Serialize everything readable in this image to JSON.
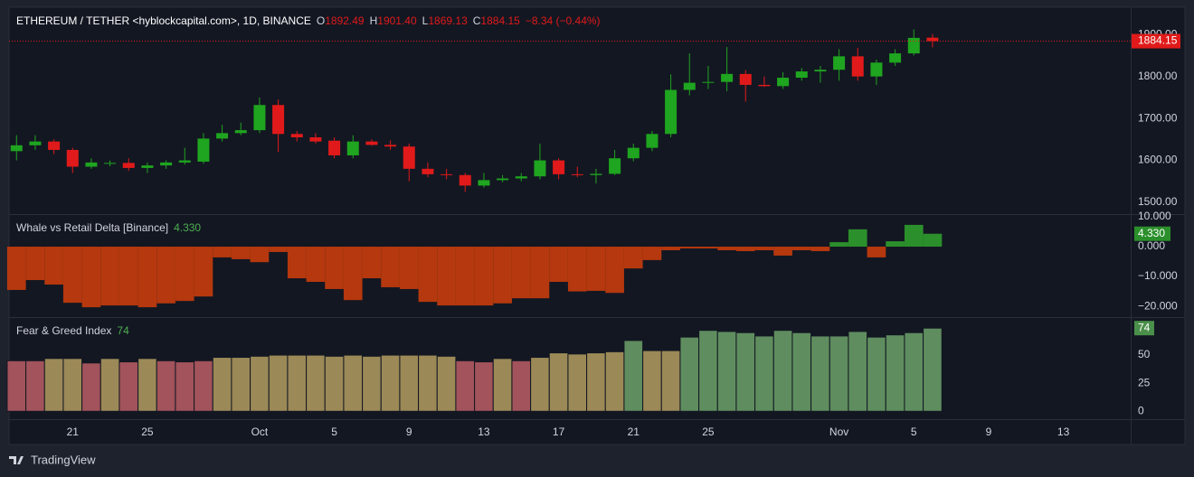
{
  "chart_data": [
    {
      "type": "candlestick",
      "title": "ETHEREUM / TETHER <hyblockcapital.com>, 1D, BINANCE",
      "legend": [
        {
          "label": "O",
          "value": "1892.49"
        },
        {
          "label": "H",
          "value": "1901.40"
        },
        {
          "label": "L",
          "value": "1869.13"
        },
        {
          "label": "C",
          "value": "1884.15"
        }
      ],
      "change": "−8.34 (−0.44%)",
      "open": [
        1622,
        1636,
        1645,
        1625,
        1585,
        1592,
        1594,
        1582,
        1588,
        1595,
        1597,
        1652,
        1665,
        1672,
        1732,
        1663,
        1655,
        1647,
        1612,
        1645,
        1637,
        1633,
        1580,
        1567,
        1565,
        1540,
        1553,
        1557,
        1562,
        1600,
        1567,
        1565,
        1568,
        1605,
        1630,
        1663,
        1768,
        1785,
        1787,
        1806,
        1780,
        1777,
        1797,
        1812,
        1816,
        1848,
        1800,
        1833,
        1855,
        1892.49
      ],
      "high": [
        1660,
        1660,
        1650,
        1630,
        1605,
        1600,
        1605,
        1595,
        1600,
        1630,
        1665,
        1685,
        1690,
        1750,
        1745,
        1670,
        1665,
        1655,
        1660,
        1650,
        1648,
        1640,
        1595,
        1580,
        1570,
        1570,
        1565,
        1570,
        1640,
        1605,
        1585,
        1580,
        1625,
        1640,
        1670,
        1805,
        1855,
        1825,
        1870,
        1815,
        1800,
        1810,
        1820,
        1825,
        1865,
        1868,
        1840,
        1865,
        1912,
        1901.4
      ],
      "low": [
        1600,
        1625,
        1615,
        1570,
        1580,
        1586,
        1575,
        1570,
        1580,
        1590,
        1592,
        1645,
        1660,
        1665,
        1620,
        1645,
        1640,
        1605,
        1605,
        1635,
        1625,
        1550,
        1560,
        1555,
        1525,
        1535,
        1548,
        1550,
        1555,
        1555,
        1560,
        1545,
        1565,
        1598,
        1622,
        1655,
        1755,
        1770,
        1765,
        1740,
        1775,
        1770,
        1790,
        1785,
        1790,
        1790,
        1780,
        1825,
        1850,
        1869.13
      ],
      "close": [
        1636,
        1645,
        1625,
        1585,
        1595,
        1594,
        1582,
        1588,
        1595,
        1600,
        1652,
        1665,
        1672,
        1732,
        1663,
        1655,
        1645,
        1612,
        1645,
        1637,
        1633,
        1580,
        1567,
        1565,
        1540,
        1553,
        1557,
        1562,
        1600,
        1567,
        1565,
        1568,
        1605,
        1630,
        1663,
        1768,
        1785,
        1787,
        1806,
        1780,
        1777,
        1797,
        1812,
        1816,
        1848,
        1800,
        1833,
        1855,
        1892,
        1884.15
      ],
      "up_color": "#1fa51f",
      "down_color": "#e01a1a",
      "ylim": [
        1472,
        1965
      ],
      "yticks": [
        {
          "value": 1500,
          "label": "1500.00"
        },
        {
          "value": 1600,
          "label": "1600.00"
        },
        {
          "value": 1700,
          "label": "1700.00"
        },
        {
          "value": 1800,
          "label": "1800.00"
        },
        {
          "value": 1900,
          "label": "1900.00"
        }
      ]
    },
    {
      "type": "bar",
      "title": "Whale vs Retail Delta [Binance]",
      "legend_value": "4.330",
      "values": [
        -14.5,
        -11.2,
        -12.7,
        -18.8,
        -20.3,
        -19.7,
        -19.7,
        -20.3,
        -19,
        -18.2,
        -16.7,
        -3.6,
        -4.2,
        -5.2,
        -1.8,
        -10.6,
        -11.8,
        -14.2,
        -17.9,
        -10.6,
        -13.6,
        -14.2,
        -18.5,
        -19.7,
        -19.7,
        -19.7,
        -19,
        -17.3,
        -17.3,
        -11.8,
        -15,
        -14.8,
        -15.5,
        -7.3,
        -4.5,
        -1.2,
        -0.6,
        -0.6,
        -1.2,
        -1.5,
        -1.2,
        -3,
        -1.2,
        -1.5,
        1.5,
        5.8,
        -3.6,
        1.8,
        7.3,
        4.33
      ],
      "positive_color": "#2b8f2b",
      "negative_color": "#b5380e",
      "ylim": [
        -23.6,
        10.6
      ],
      "yticks": [
        {
          "value": -20,
          "label": "−20.000"
        },
        {
          "value": -10,
          "label": "−10.000"
        },
        {
          "value": 0,
          "label": "0.000"
        },
        {
          "value": 10,
          "label": "10.000"
        }
      ]
    },
    {
      "type": "bar",
      "title": "Fear & Greed Index",
      "values": [
        45,
        45,
        47,
        47,
        43,
        47,
        44,
        47,
        45,
        44,
        45,
        48,
        48,
        49,
        50,
        50,
        50,
        49,
        50,
        49,
        50,
        50,
        50,
        49,
        45,
        44,
        47,
        45,
        48,
        52,
        51,
        52,
        53,
        63,
        54,
        54,
        66,
        72,
        71,
        70,
        67,
        72,
        70,
        67,
        67,
        71,
        66,
        68,
        70,
        74
      ],
      "colors": [
        "#a2535b",
        "#a2535b",
        "#9b8957",
        "#9b8957",
        "#a2535b",
        "#9b8957",
        "#a2535b",
        "#9b8957",
        "#a2535b",
        "#a2535b",
        "#a2535b",
        "#9b8957",
        "#9b8957",
        "#9b8957",
        "#9b8957",
        "#9b8957",
        "#9b8957",
        "#9b8957",
        "#9b8957",
        "#9b8957",
        "#9b8957",
        "#9b8957",
        "#9b8957",
        "#9b8957",
        "#a2535b",
        "#a2535b",
        "#9b8957",
        "#a2535b",
        "#9b8957",
        "#9b8957",
        "#9b8957",
        "#9b8957",
        "#9b8957",
        "#5f8d5f",
        "#9b8957",
        "#9b8957",
        "#5f8d5f",
        "#5f8d5f",
        "#5f8d5f",
        "#5f8d5f",
        "#5f8d5f",
        "#5f8d5f",
        "#5f8d5f",
        "#5f8d5f",
        "#5f8d5f",
        "#5f8d5f",
        "#5f8d5f",
        "#5f8d5f",
        "#5f8d5f",
        "#5f8d5f"
      ],
      "ylim": [
        -7,
        83
      ],
      "yticks": [
        0,
        25,
        50
      ],
      "xlim": [
        -0.4,
        59.6
      ],
      "xticks": [
        {
          "value": 3,
          "label": "21"
        },
        {
          "value": 7,
          "label": "25"
        },
        {
          "value": 13,
          "label": "Oct"
        },
        {
          "value": 17,
          "label": "5"
        },
        {
          "value": 21,
          "label": "9"
        },
        {
          "value": 25,
          "label": "13"
        },
        {
          "value": 29,
          "label": "17"
        },
        {
          "value": 33,
          "label": "21"
        },
        {
          "value": 37,
          "label": "25"
        },
        {
          "value": 44,
          "label": "Nov"
        },
        {
          "value": 48,
          "label": "5"
        },
        {
          "value": 52,
          "label": "9"
        },
        {
          "value": 56,
          "label": "13"
        }
      ]
    }
  ],
  "footer": {
    "brand": "TradingView"
  }
}
